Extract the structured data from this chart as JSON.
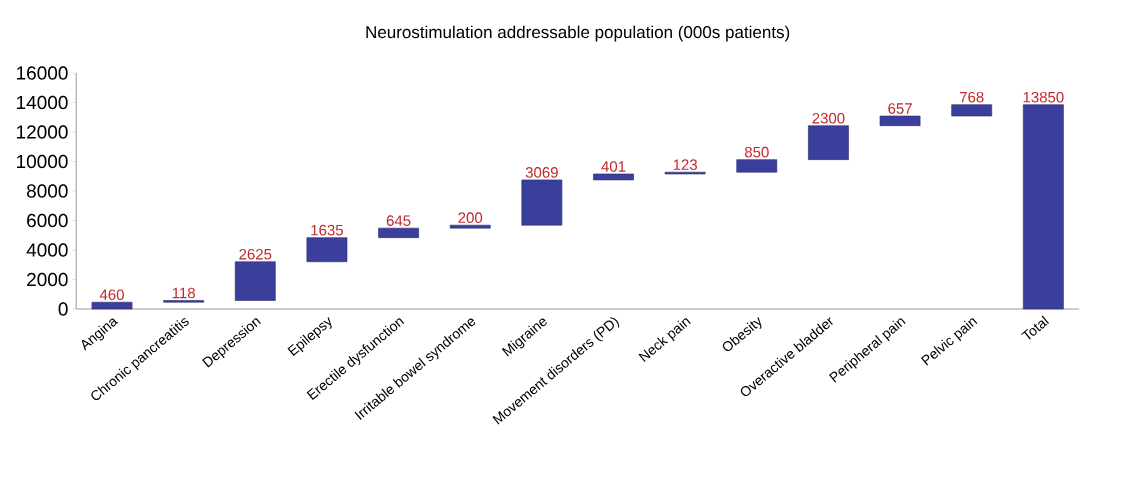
{
  "chart_data": {
    "type": "bar",
    "title": "Neurostimulation addressable population (000s patients)",
    "categories": [
      "Angina",
      "Chronic pancreatitis",
      "Depression",
      "Epilepsy",
      "Erectile dysfunction",
      "Irritable bowel syndrome",
      "Migraine",
      "Movement disorders (PD)",
      "Neck pain",
      "Obesity",
      "Overactive bladder",
      "Peripheral pain",
      "Pelvic pain",
      "Total"
    ],
    "values": [
      460,
      118,
      2625,
      1635,
      645,
      200,
      3069,
      401,
      123,
      850,
      2300,
      657,
      768,
      13850
    ],
    "base": [
      0,
      460,
      578,
      3203,
      4838,
      5483,
      5683,
      8752,
      9153,
      9276,
      10126,
      12426,
      13083,
      0
    ],
    "color": "#3b3f9c",
    "data_labels": true,
    "ylim": [
      0,
      16000
    ],
    "yticks": [
      0,
      2000,
      4000,
      6000,
      8000,
      10000,
      12000,
      14000,
      16000
    ]
  }
}
